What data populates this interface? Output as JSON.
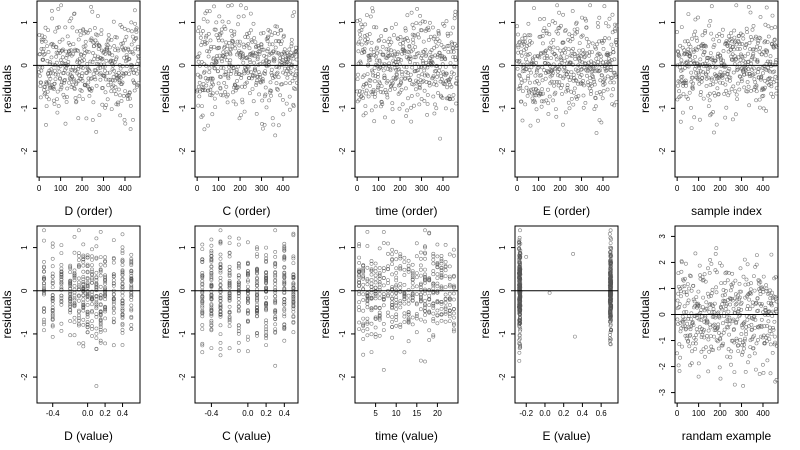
{
  "chart_data": [
    {
      "type": "scatter",
      "xlabel": "D (order)",
      "ylabel": "residuals",
      "xlim": [
        -10,
        470
      ],
      "ylim": [
        -2.6,
        1.5
      ],
      "xticks": [
        0,
        100,
        200,
        300,
        400
      ],
      "yticks": [
        -2,
        -1,
        0,
        1
      ],
      "reference_line_y": 0,
      "seed": 11,
      "n": 470,
      "x_kind": "order",
      "x_range": [
        0,
        465
      ],
      "marker": "open-circle"
    },
    {
      "type": "scatter",
      "xlabel": "C (order)",
      "ylabel": "residuals",
      "xlim": [
        -10,
        470
      ],
      "ylim": [
        -2.6,
        1.5
      ],
      "xticks": [
        0,
        100,
        200,
        300,
        400
      ],
      "yticks": [
        -2,
        -1,
        0,
        1
      ],
      "reference_line_y": 0,
      "seed": 23,
      "n": 470,
      "x_kind": "order",
      "x_range": [
        0,
        465
      ],
      "marker": "open-circle"
    },
    {
      "type": "scatter",
      "xlabel": "time (order)",
      "ylabel": "residuals",
      "xlim": [
        -10,
        470
      ],
      "ylim": [
        -2.6,
        1.5
      ],
      "xticks": [
        0,
        100,
        200,
        300,
        400
      ],
      "yticks": [
        -2,
        -1,
        0,
        1
      ],
      "reference_line_y": 0,
      "seed": 37,
      "n": 470,
      "x_kind": "order",
      "x_range": [
        0,
        465
      ],
      "marker": "open-circle"
    },
    {
      "type": "scatter",
      "xlabel": "E (order)",
      "ylabel": "residuals",
      "xlim": [
        -10,
        470
      ],
      "ylim": [
        -2.6,
        1.5
      ],
      "xticks": [
        0,
        100,
        200,
        300,
        400
      ],
      "yticks": [
        -2,
        -1,
        0,
        1
      ],
      "reference_line_y": 0,
      "seed": 41,
      "n": 470,
      "x_kind": "order",
      "x_range": [
        0,
        465
      ],
      "marker": "open-circle"
    },
    {
      "type": "scatter",
      "xlabel": "sample index",
      "ylabel": "residuals",
      "xlim": [
        -10,
        470
      ],
      "ylim": [
        -2.6,
        1.5
      ],
      "xticks": [
        0,
        100,
        200,
        300,
        400
      ],
      "yticks": [
        -2,
        -1,
        0,
        1
      ],
      "reference_line_y": 0,
      "seed": 53,
      "n": 470,
      "x_kind": "order",
      "x_range": [
        0,
        465
      ],
      "marker": "open-circle"
    },
    {
      "type": "scatter",
      "xlabel": "D (value)",
      "ylabel": "residuals",
      "xlim": [
        -0.58,
        0.6
      ],
      "ylim": [
        -2.6,
        1.5
      ],
      "xticks": [
        -0.4,
        0.0,
        0.2,
        0.4
      ],
      "xticklabels": [
        "-0.4",
        "0.0",
        "0.2",
        "0.4"
      ],
      "yticks": [
        -2,
        -1,
        0,
        1
      ],
      "reference_line_y": 0,
      "seed": 61,
      "n": 470,
      "x_kind": "discrete",
      "x_levels": [
        -0.5,
        -0.4,
        -0.3,
        -0.2,
        -0.15,
        -0.1,
        -0.05,
        0.0,
        0.05,
        0.1,
        0.15,
        0.2,
        0.3,
        0.4,
        0.5
      ],
      "marker": "open-circle"
    },
    {
      "type": "scatter",
      "xlabel": "C (value)",
      "ylabel": "residuals",
      "xlim": [
        -0.58,
        0.55
      ],
      "ylim": [
        -2.6,
        1.5
      ],
      "xticks": [
        -0.4,
        0.0,
        0.2,
        0.4
      ],
      "xticklabels": [
        "-0.4",
        "0.0",
        "0.2",
        "0.4"
      ],
      "yticks": [
        -2,
        -1,
        0,
        1
      ],
      "reference_line_y": 0,
      "seed": 71,
      "n": 470,
      "x_kind": "discrete",
      "x_levels": [
        -0.5,
        -0.4,
        -0.3,
        -0.2,
        -0.1,
        0.0,
        0.1,
        0.2,
        0.3,
        0.4,
        0.5
      ],
      "marker": "open-circle"
    },
    {
      "type": "scatter",
      "xlabel": "time (value)",
      "ylabel": "residuals",
      "xlim": [
        0,
        25
      ],
      "ylim": [
        -2.6,
        1.5
      ],
      "xticks": [
        5,
        10,
        15,
        20
      ],
      "yticks": [
        -2,
        -1,
        0,
        1
      ],
      "reference_line_y": 0,
      "seed": 83,
      "n": 470,
      "x_kind": "discrete",
      "x_levels": [
        1,
        2,
        3,
        4,
        5,
        6,
        7,
        8,
        9,
        10,
        11,
        12,
        13,
        14,
        15,
        16,
        17,
        18,
        19,
        20,
        21,
        22,
        23,
        24
      ],
      "marker": "open-circle"
    },
    {
      "type": "scatter",
      "xlabel": "E (value)",
      "ylabel": "residuals",
      "xlim": [
        -0.32,
        0.78
      ],
      "ylim": [
        -2.6,
        1.5
      ],
      "xticks": [
        -0.2,
        0.0,
        0.2,
        0.4,
        0.6
      ],
      "xticklabels": [
        "-0.2",
        "0.0",
        "0.2",
        "0.4",
        "0.6"
      ],
      "yticks": [
        -2,
        -1,
        0,
        1
      ],
      "reference_line_y": 0,
      "seed": 97,
      "n": 470,
      "x_kind": "clustered",
      "x_levels": [
        -0.27,
        0.7
      ],
      "x_outliers": [
        -0.2,
        0.05,
        0.3,
        0.32
      ],
      "marker": "open-circle"
    },
    {
      "type": "scatter",
      "xlabel": "randam example",
      "ylabel": "residuals",
      "xlim": [
        -10,
        470
      ],
      "ylim": [
        -3.4,
        3.4
      ],
      "xticks": [
        0,
        100,
        200,
        300,
        400
      ],
      "yticks": [
        -3,
        -2,
        -1,
        0,
        1,
        2,
        3
      ],
      "reference_line_y": 0,
      "seed": 101,
      "n": 470,
      "x_kind": "order",
      "x_range": [
        0,
        465
      ],
      "marker": "open-circle"
    }
  ]
}
